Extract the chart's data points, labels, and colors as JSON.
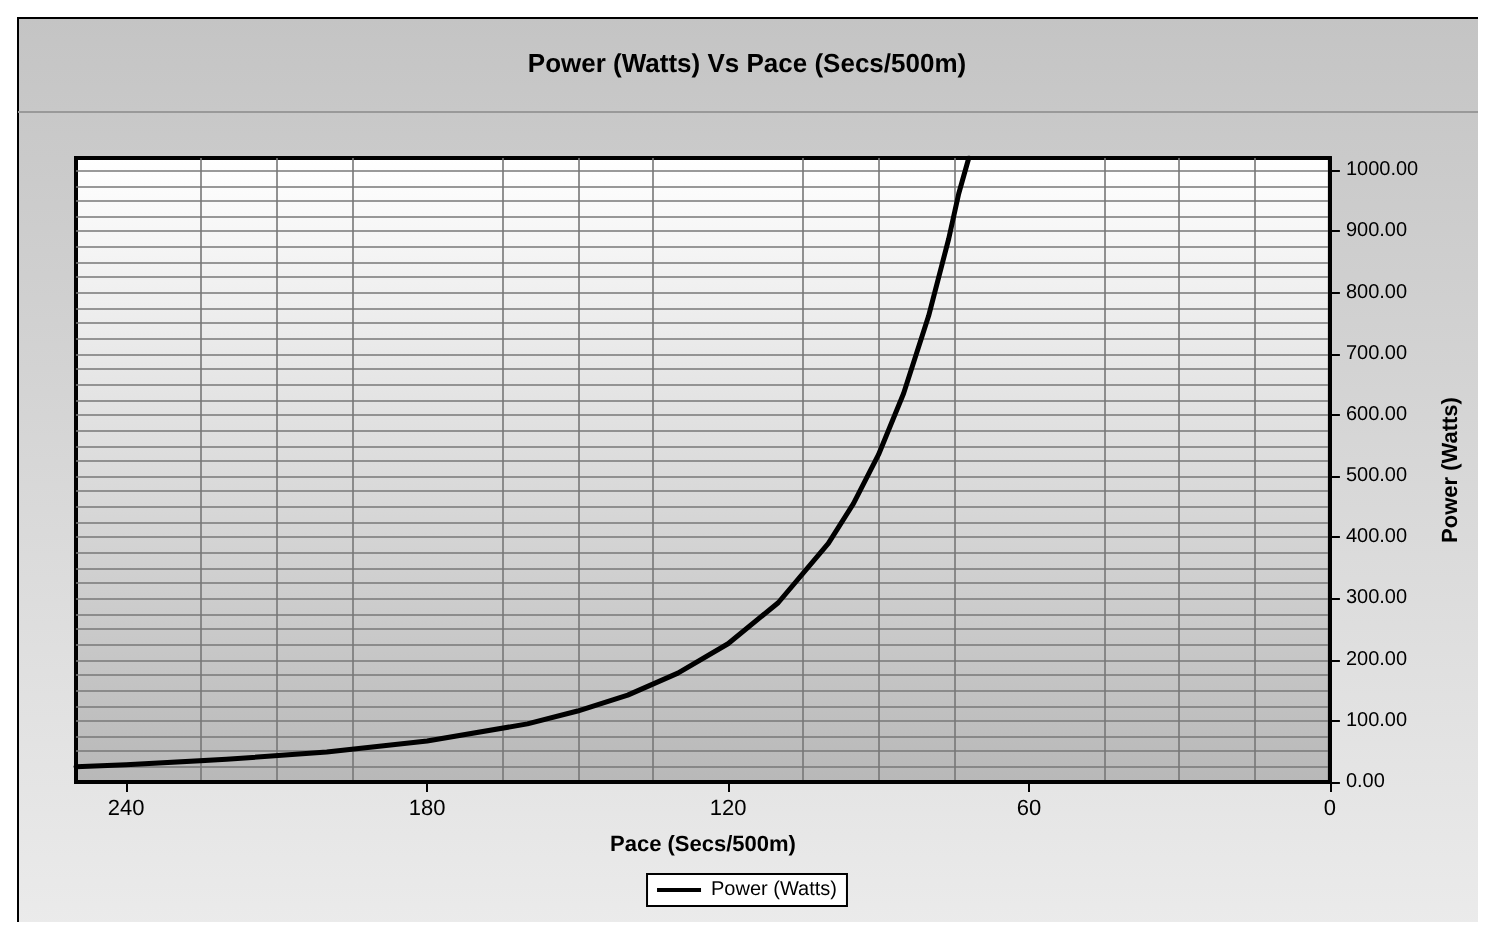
{
  "chart_data": {
    "type": "line",
    "title": "Power (Watts) Vs Pace (Secs/500m)",
    "xlabel": "Pace (Secs/500m)",
    "ylabel": "Power (Watts)",
    "x": [
      250,
      240,
      220,
      200,
      180,
      160,
      150,
      140,
      130,
      120,
      110,
      100,
      95,
      90,
      85,
      80,
      76,
      74,
      72
    ],
    "series": [
      {
        "name": "Power (Watts)",
        "color": "#000000",
        "values": [
          25,
          28,
          37,
          49,
          67,
          95,
          116,
          142,
          178,
          226,
          293,
          390,
          455,
          535,
          635,
          762,
          888,
          962,
          1020
        ]
      }
    ],
    "xlim": [
      250,
      0
    ],
    "xticks": [
      240,
      180,
      120,
      60,
      0
    ],
    "ylim": [
      0,
      1020
    ],
    "yticks": [
      {
        "value": 0,
        "label": "0.00"
      },
      {
        "value": 100,
        "label": "100.00"
      },
      {
        "value": 200,
        "label": "200.00"
      },
      {
        "value": 300,
        "label": "300.00"
      },
      {
        "value": 400,
        "label": "400.00"
      },
      {
        "value": 500,
        "label": "500.00"
      },
      {
        "value": 600,
        "label": "600.00"
      },
      {
        "value": 700,
        "label": "700.00"
      },
      {
        "value": 800,
        "label": "800.00"
      },
      {
        "value": 900,
        "label": "900.00"
      },
      {
        "value": 1000,
        "label": "1000.00"
      }
    ],
    "grid": true,
    "legend": "bottom",
    "marker": "none",
    "line_style": "solid"
  }
}
